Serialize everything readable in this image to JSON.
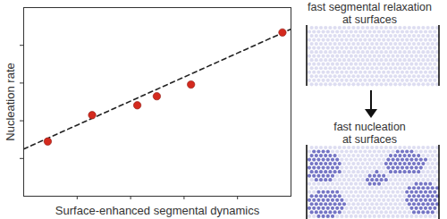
{
  "chart_data": {
    "type": "scatter",
    "x_label": "Surface-enhanced segmental dynamics",
    "y_label": "Nucleation rate",
    "x": [
      0.9,
      2.56,
      4.25,
      4.98,
      6.26,
      9.68
    ],
    "values": [
      2.9,
      4.3,
      4.82,
      5.3,
      5.92,
      8.68
    ],
    "color": "#d42a1e",
    "marker": "circle",
    "trendline": {
      "x": [
        0,
        10
      ],
      "y": [
        2.5,
        8.86
      ],
      "color": "#222222",
      "line_style": "dashed"
    },
    "xlim": [
      0,
      10
    ],
    "ylim": [
      0,
      10
    ],
    "xticks": [
      2,
      4,
      6,
      8
    ],
    "yticks": [
      2,
      4,
      6,
      8
    ],
    "tick_labels": false,
    "grid": false
  },
  "diagram": {
    "panels": [
      {
        "caption": [
          "fast segmental relaxation",
          "at surfaces"
        ]
      },
      {
        "caption": [
          "fast nucleation",
          "at surfaces"
        ]
      }
    ]
  }
}
